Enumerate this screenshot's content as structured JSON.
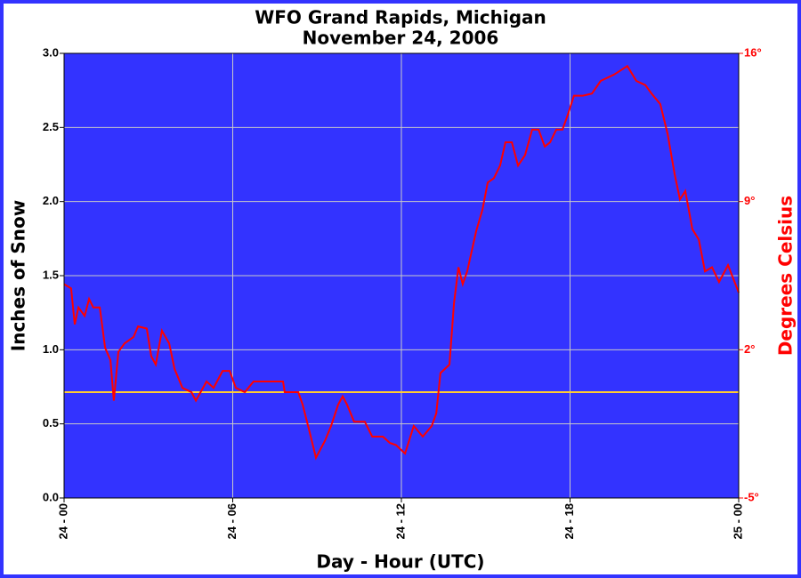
{
  "chart_data": {
    "type": "line",
    "title": "WFO Grand Rapids, Michigan",
    "subtitle": "November 24, 2006",
    "x_label": "Day - Hour (UTC)",
    "y_label": "Inches of Snow",
    "y2_label": "Degrees Celsius",
    "xlim": [
      0,
      24
    ],
    "xticks": [
      {
        "value": 0,
        "label": "24 - 00"
      },
      {
        "value": 6,
        "label": "24 - 06"
      },
      {
        "value": 12,
        "label": "24 - 12"
      },
      {
        "value": 18,
        "label": "24 - 18"
      },
      {
        "value": 24,
        "label": "25 - 00"
      }
    ],
    "ylim": [
      0,
      3
    ],
    "yticks": [
      {
        "value": 0,
        "label": "0.0"
      },
      0.5,
      {
        "value": 1,
        "label": "1.0"
      },
      1.5,
      {
        "value": 2,
        "label": "2.0"
      },
      2.5,
      {
        "value": 3,
        "label": "3.0"
      }
    ],
    "y2lim": [
      -5,
      16
    ],
    "y2ticks": [
      {
        "value": -5,
        "label": "-5°"
      },
      {
        "value": 2,
        "label": "2°"
      },
      {
        "value": 9,
        "label": "9°"
      },
      {
        "value": 16,
        "label": "16°"
      }
    ],
    "grid": true,
    "plot_background": "#3333ff",
    "reference_lines": [
      {
        "axis": "y2",
        "value": 0,
        "color": "#ffcc33"
      }
    ],
    "x": [
      0,
      0.25,
      0.38,
      0.51,
      0.73,
      0.89,
      1.04,
      1.27,
      1.46,
      1.65,
      1.77,
      1.93,
      2.15,
      2.47,
      2.63,
      2.94,
      3.1,
      3.26,
      3.48,
      3.74,
      3.93,
      4.21,
      4.53,
      4.69,
      5.07,
      5.32,
      5.64,
      5.89,
      6.11,
      6.43,
      6.74,
      7.22,
      7.79,
      7.85,
      8.33,
      8.49,
      8.74,
      8.96,
      9.28,
      9.5,
      9.75,
      9.91,
      10.07,
      10.32,
      10.7,
      10.96,
      11.34,
      11.59,
      11.81,
      12.13,
      12.44,
      12.76,
      13.08,
      13.24,
      13.39,
      13.71,
      13.87,
      14.03,
      14.18,
      14.34,
      14.66,
      14.88,
      15.07,
      15.29,
      15.51,
      15.7,
      15.93,
      16.15,
      16.4,
      16.65,
      16.88,
      17.1,
      17.29,
      17.51,
      17.73,
      17.92,
      18.14,
      18.46,
      18.78,
      19.09,
      19.57,
      20.04,
      20.36,
      20.68,
      20.9,
      21.21,
      21.47,
      21.72,
      21.91,
      22.1,
      22.35,
      22.58,
      22.8,
      23.05,
      23.3,
      23.62,
      24
    ],
    "series": [
      {
        "color": "#ff0000",
        "axis": "y2",
        "values": [
          5.1,
          4.9,
          3.2,
          4.0,
          3.6,
          4.4,
          4.0,
          4.0,
          2.1,
          1.5,
          -0.4,
          1.9,
          2.3,
          2.6,
          3.1,
          3.0,
          1.7,
          1.3,
          2.9,
          2.3,
          1.1,
          0.2,
          0.0,
          -0.4,
          0.5,
          0.2,
          1.0,
          1.0,
          0.2,
          0.0,
          0.5,
          0.5,
          0.5,
          0.0,
          0.0,
          -0.6,
          -1.9,
          -3.1,
          -2.3,
          -1.6,
          -0.6,
          -0.2,
          -0.6,
          -1.4,
          -1.4,
          -2.1,
          -2.1,
          -2.4,
          -2.5,
          -2.9,
          -1.6,
          -2.1,
          -1.6,
          -1.0,
          0.9,
          1.3,
          4.2,
          5.9,
          5.1,
          5.7,
          7.6,
          8.6,
          9.9,
          10.1,
          10.7,
          11.8,
          11.8,
          10.7,
          11.2,
          12.4,
          12.4,
          11.6,
          11.8,
          12.4,
          12.4,
          13.1,
          14.0,
          14.0,
          14.1,
          14.7,
          15.0,
          15.4,
          14.7,
          14.5,
          14.1,
          13.6,
          12.2,
          10.3,
          9.1,
          9.5,
          7.7,
          7.2,
          5.7,
          5.9,
          5.2,
          6.0,
          4.7
        ]
      }
    ]
  }
}
